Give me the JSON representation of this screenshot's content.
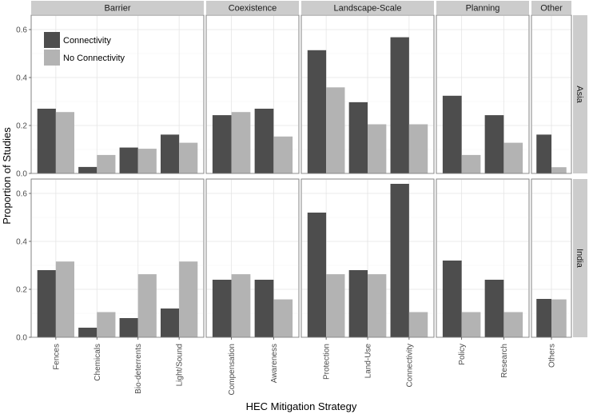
{
  "chart_data": {
    "type": "bar",
    "xlabel": "HEC Mitigation Strategy",
    "ylabel": "Proportion of Studies",
    "ylim": [
      0,
      0.66
    ],
    "yticks": [
      0.0,
      0.2,
      0.4,
      0.6
    ],
    "ytick_labels": [
      "0.0",
      "0.2",
      "0.4",
      "0.6"
    ],
    "grid": true,
    "legend": {
      "position": "top-left",
      "entries": [
        {
          "name": "Connectivity",
          "color": "#4d4d4d"
        },
        {
          "name": "No Connectivity",
          "color": "#b3b3b3"
        }
      ]
    },
    "column_facets": [
      {
        "label": "Barrier",
        "categories": [
          "Fences",
          "Chemicals",
          "Bio-deterrents",
          "Light/Sound"
        ]
      },
      {
        "label": "Coexistence",
        "categories": [
          "Compensation",
          "Awareness"
        ]
      },
      {
        "label": "Landscape-Scale",
        "categories": [
          "Protection",
          "Land-Use",
          "Connectivity"
        ]
      },
      {
        "label": "Planning",
        "categories": [
          "Policy",
          "Research"
        ]
      },
      {
        "label": "Other",
        "categories": [
          "Others"
        ]
      }
    ],
    "row_facets": [
      {
        "label": "Asia",
        "series": [
          {
            "name": "Connectivity",
            "values": [
              [
                0.27,
                0.027,
                0.108,
                0.162
              ],
              [
                0.243,
                0.27
              ],
              [
                0.514,
                0.297,
                0.568
              ],
              [
                0.324,
                0.243
              ],
              [
                0.162
              ]
            ]
          },
          {
            "name": "No Connectivity",
            "values": [
              [
                0.256,
                0.077,
                0.103,
                0.128
              ],
              [
                0.256,
                0.154
              ],
              [
                0.359,
                0.205,
                0.205
              ],
              [
                0.077,
                0.128
              ],
              [
                0.026
              ]
            ]
          }
        ]
      },
      {
        "label": "India",
        "series": [
          {
            "name": "Connectivity",
            "values": [
              [
                0.28,
                0.04,
                0.08,
                0.12
              ],
              [
                0.24,
                0.24
              ],
              [
                0.52,
                0.28,
                0.64
              ],
              [
                0.32,
                0.24
              ],
              [
                0.16
              ]
            ]
          },
          {
            "name": "No Connectivity",
            "values": [
              [
                0.316,
                0.105,
                0.263,
                0.316
              ],
              [
                0.263,
                0.158
              ],
              [
                0.263,
                0.263,
                0.105
              ],
              [
                0.105,
                0.105
              ],
              [
                0.158
              ]
            ]
          }
        ]
      }
    ]
  }
}
